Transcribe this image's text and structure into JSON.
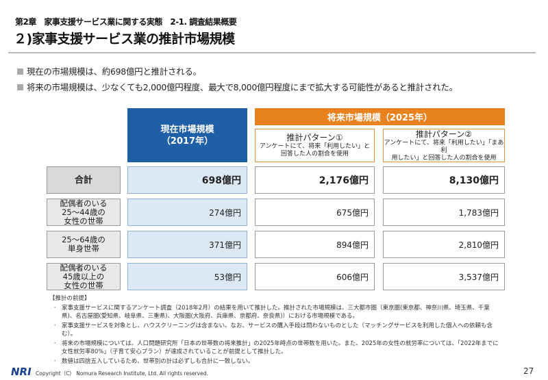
{
  "header": {
    "chapter": "第2章　家事支援サービス業に関する実態　2-1. 調査結果概要",
    "title": "２)家事支援サービス業の推計市場規模"
  },
  "bullets": [
    "現在の市場規模は、約698億円と推計される。",
    "将来の市場規模は、少なくても2,000億円程度、最大で8,000億円程度にまで拡大する可能性があると推計された。"
  ],
  "table": {
    "current_header": [
      "現在市場規模",
      "（2017年）"
    ],
    "future_header": "将来市場規模（2025年）",
    "patterns": [
      {
        "title": "推計パターン①",
        "desc": [
          "アンケートにて、将来「利用したい」と",
          "回答した人の割合を使用"
        ]
      },
      {
        "title": "推計パターン②",
        "desc": [
          "アンケートにて、将来「利用したい」「まあ利",
          "用したい」と回答した人の割合を使用"
        ]
      }
    ],
    "rows": [
      {
        "label": [
          "合計"
        ],
        "current": "698億円",
        "p1": "2,176億円",
        "p2": "8,130億円"
      },
      {
        "label": [
          "配偶者のいる",
          "25～44歳の",
          "女性の世帯"
        ],
        "current": "274億円",
        "p1": "675億円",
        "p2": "1,783億円"
      },
      {
        "label": [
          "25～64歳の",
          "単身世帯"
        ],
        "current": "371億円",
        "p1": "894億円",
        "p2": "2,810億円"
      },
      {
        "label": [
          "配偶者のいる",
          "45歳以上の",
          "女性の世帯"
        ],
        "current": "53億円",
        "p1": "606億円",
        "p2": "3,537億円"
      }
    ]
  },
  "notes": {
    "heading": "【推計の前提】",
    "items": [
      "家事支援サービスに関するアンケート調査（2018年2月）の結果を用いて推計した。推計された市場規模は、三大都市圏（東京圏(東京都、神奈川県、埼玉県、千葉県)、名古屋圏(愛知県、岐阜県、三重県)、大阪圏(大阪府、兵庫県、京都府、奈良県)）における市場規模である。",
      "家事支援サービスを対象とし、ハウスクリーニングは含まない。なお、サービスの購入手段は問わないものとした（マッチングサービスを利用した個人への依頼も含む）。",
      "将来の市場規模については、人口問題研究所「日本の世帯数の将来推計」の2025年時点の世帯数を用いた。また、2025年の女性の就労率については、「2022年までに女性就労率80%」（子育て安心プラン）が達成されていることが前提として推計した。",
      "数値は四捨五入しているため、世帯別の計は必ずしも合計に一致しない。"
    ]
  },
  "footer": {
    "logo": "NRI",
    "copyright": "Copyright（C） Nomura Research Institute, Ltd. All rights reserved.",
    "page": "27"
  },
  "colors": {
    "blue": "#1f5fa6",
    "orange": "#e8821e",
    "logo": "#1a3f8f"
  }
}
